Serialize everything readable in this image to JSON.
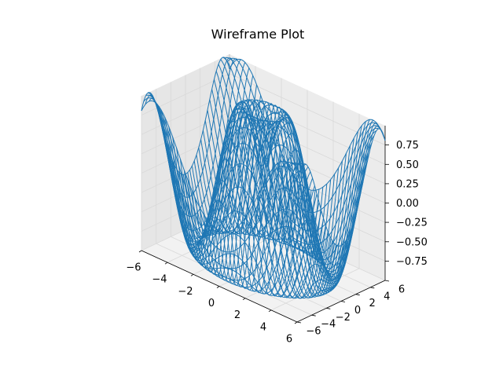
{
  "chart_data": {
    "type": "wireframe",
    "title": "Wireframe Plot",
    "surface": "z = sin(sqrt(x^2 + y^2))",
    "xlim": [
      -6,
      6
    ],
    "ylim": [
      -6,
      6
    ],
    "zlim": [
      -1,
      1
    ],
    "x_ticks": [
      -6,
      -4,
      -2,
      0,
      2,
      4,
      6
    ],
    "y_ticks": [
      -6,
      -4,
      -2,
      0,
      2,
      4,
      6
    ],
    "z_ticks": [
      0.75,
      0.5,
      0.25,
      0.0,
      -0.25,
      -0.5,
      -0.75
    ],
    "x_tick_labels": [
      "−6",
      "−4",
      "−2",
      "0",
      "2",
      "4",
      "6"
    ],
    "y_tick_labels": [
      "−6",
      "−4",
      "−2",
      "0",
      "2",
      "4",
      "6"
    ],
    "z_tick_labels": [
      "0.75",
      "0.50",
      "0.25",
      "0.00",
      "−0.25",
      "−0.50",
      "−0.75"
    ],
    "grid": true,
    "line_color": "#1f77b4",
    "pane_color": "#f2f2f2",
    "grid_color": "#d9d9d9"
  }
}
